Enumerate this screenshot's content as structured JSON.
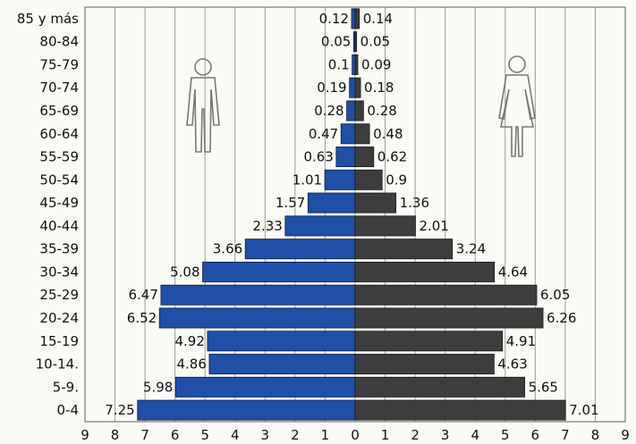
{
  "chart_data": {
    "type": "bar",
    "orientation": "horizontal-population-pyramid",
    "categories": [
      "0-4",
      "5-9.",
      "10-14.",
      "15-19",
      "20-24",
      "25-29",
      "30-34",
      "35-39",
      "40-44",
      "45-49",
      "50-54",
      "55-59",
      "60-64",
      "65-69",
      "70-74",
      "75-79",
      "80-84",
      "85 y más"
    ],
    "series": [
      {
        "values": [
          7.25,
          5.98,
          4.86,
          4.92,
          6.52,
          6.47,
          5.08,
          3.66,
          2.33,
          1.57,
          1.01,
          0.63,
          0.47,
          0.28,
          0.19,
          0.1,
          0.05,
          0.12
        ]
      },
      {
        "values": [
          7.01,
          5.65,
          4.63,
          4.91,
          6.26,
          6.05,
          4.64,
          3.24,
          2.01,
          1.36,
          0.9,
          0.62,
          0.48,
          0.28,
          0.18,
          0.09,
          0.05,
          0.14
        ]
      }
    ],
    "value_labels_left": [
      "7.25",
      "5.98",
      "4.86",
      "4.92",
      "6.52",
      "6.47",
      "5.08",
      "3.66",
      "2.33",
      "1.57",
      "1.01",
      "0.63",
      "0.47",
      "0.28",
      "0.19",
      "0.1",
      "0.05",
      "0.12"
    ],
    "value_labels_right": [
      "7.01",
      "5.65",
      "4.63",
      "4.91",
      "6.26",
      "6.05",
      "4.64",
      "3.24",
      "2.01",
      "1.36",
      "0.9",
      "0.62",
      "0.48",
      "0.28",
      "0.18",
      "0.09",
      "0.05",
      "0.14"
    ],
    "xticks": [
      "9",
      "8",
      "7",
      "6",
      "5",
      "4",
      "3",
      "2",
      "1",
      "0",
      "1",
      "2",
      "3",
      "4",
      "5",
      "6",
      "7",
      "8",
      "9"
    ],
    "xlim": [
      -9,
      9
    ],
    "grid": true,
    "colors": {
      "left": "#1f4fa6",
      "right": "#3d3d3d",
      "background": "#fbfbf6"
    },
    "icons": [
      "male-figure-icon",
      "female-figure-icon"
    ]
  }
}
